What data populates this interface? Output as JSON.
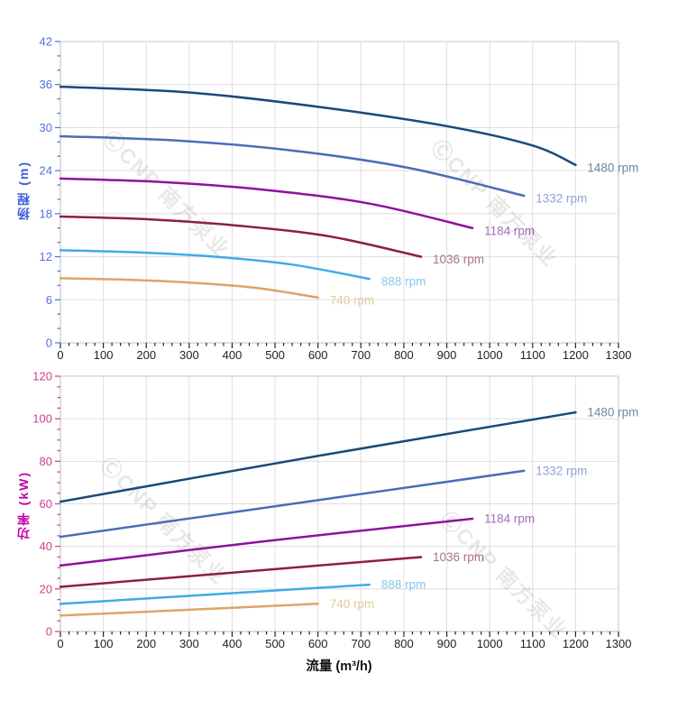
{
  "watermark": {
    "text": "ⒸCNP 南方泵业"
  },
  "x_axis": {
    "title": "流量 (m³/h)",
    "min": 0,
    "max": 1300,
    "major_step": 100,
    "minor_step": 20,
    "tick_labels": [
      "0",
      "100",
      "200",
      "300",
      "400",
      "500",
      "600",
      "700",
      "800",
      "900",
      "1000",
      "1100",
      "1200",
      "1300"
    ],
    "tick_color": "#222222"
  },
  "chart_data": [
    {
      "type": "line",
      "id": "head",
      "title": "",
      "ylabel_cn": "扬程",
      "ylabel_unit": "(m)",
      "xlabel": "流量 (m³/h)",
      "ylim": [
        0,
        42
      ],
      "xlim": [
        0,
        1300
      ],
      "y_major_step": 6,
      "y_minor_step": 2,
      "y_tick_labels": [
        "0",
        "6",
        "12",
        "18",
        "24",
        "30",
        "36",
        "42"
      ],
      "axis_color": "#5170e0",
      "grid": true,
      "legend_position": "curve-end-labels",
      "series": [
        {
          "name": "1480 rpm",
          "color": "#1a4a78",
          "label_color": "#6d88a5",
          "points": [
            [
              0,
              35.7
            ],
            [
              300,
              34.9
            ],
            [
              600,
              32.9
            ],
            [
              900,
              30.2
            ],
            [
              1100,
              27.5
            ],
            [
              1200,
              24.8
            ]
          ]
        },
        {
          "name": "1332 rpm",
          "color": "#486eb8",
          "label_color": "#8da2d4",
          "points": [
            [
              0,
              28.8
            ],
            [
              270,
              28.2
            ],
            [
              540,
              26.8
            ],
            [
              810,
              24.4
            ],
            [
              1080,
              20.5
            ]
          ]
        },
        {
          "name": "1184 rpm",
          "color": "#8f119d",
          "label_color": "#a76db8",
          "points": [
            [
              0,
              22.9
            ],
            [
              240,
              22.4
            ],
            [
              480,
              21.3
            ],
            [
              720,
              19.4
            ],
            [
              960,
              16.0
            ]
          ]
        },
        {
          "name": "1036 rpm",
          "color": "#8e1e3d",
          "label_color": "#ad7189",
          "points": [
            [
              0,
              17.6
            ],
            [
              210,
              17.2
            ],
            [
              420,
              16.3
            ],
            [
              630,
              14.8
            ],
            [
              840,
              12.0
            ]
          ]
        },
        {
          "name": "888 rpm",
          "color": "#3face6",
          "label_color": "#87c9ee",
          "points": [
            [
              0,
              12.9
            ],
            [
              180,
              12.6
            ],
            [
              360,
              12.0
            ],
            [
              540,
              10.9
            ],
            [
              720,
              8.9
            ]
          ]
        },
        {
          "name": "740 rpm",
          "color": "#dca467",
          "label_color": "#e6c89b",
          "points": [
            [
              0,
              9.0
            ],
            [
              150,
              8.8
            ],
            [
              300,
              8.4
            ],
            [
              450,
              7.7
            ],
            [
              600,
              6.3
            ]
          ]
        }
      ]
    },
    {
      "type": "line",
      "id": "power",
      "title": "",
      "ylabel_cn": "功率",
      "ylabel_unit": "(kW)",
      "xlabel": "流量 (m³/h)",
      "ylim": [
        0,
        120
      ],
      "xlim": [
        0,
        1300
      ],
      "y_major_step": 20,
      "y_minor_step": 5,
      "y_tick_labels": [
        "0",
        "20",
        "40",
        "60",
        "80",
        "100",
        "120"
      ],
      "axis_color": "#cb3e8e",
      "grid": true,
      "legend_position": "curve-end-labels",
      "series": [
        {
          "name": "1480 rpm",
          "color": "#1a4a78",
          "label_color": "#6d88a5",
          "points": [
            [
              0,
              61
            ],
            [
              600,
              82.5
            ],
            [
              1200,
              103
            ]
          ]
        },
        {
          "name": "1332 rpm",
          "color": "#486eb8",
          "label_color": "#8da2d4",
          "points": [
            [
              0,
              44.5
            ],
            [
              540,
              60
            ],
            [
              1080,
              75.5
            ]
          ]
        },
        {
          "name": "1184 rpm",
          "color": "#8f119d",
          "label_color": "#a76db8",
          "points": [
            [
              0,
              31
            ],
            [
              480,
              42.5
            ],
            [
              960,
              53
            ]
          ]
        },
        {
          "name": "1036 rpm",
          "color": "#8e1e3d",
          "label_color": "#ad7189",
          "points": [
            [
              0,
              21
            ],
            [
              420,
              28
            ],
            [
              840,
              35
            ]
          ]
        },
        {
          "name": "888 rpm",
          "color": "#3face6",
          "label_color": "#87c9ee",
          "points": [
            [
              0,
              13
            ],
            [
              360,
              17.5
            ],
            [
              720,
              22
            ]
          ]
        },
        {
          "name": "740 rpm",
          "color": "#dca467",
          "label_color": "#e6c89b",
          "points": [
            [
              0,
              7.5
            ],
            [
              300,
              10.2
            ],
            [
              600,
              13
            ]
          ]
        }
      ]
    }
  ]
}
